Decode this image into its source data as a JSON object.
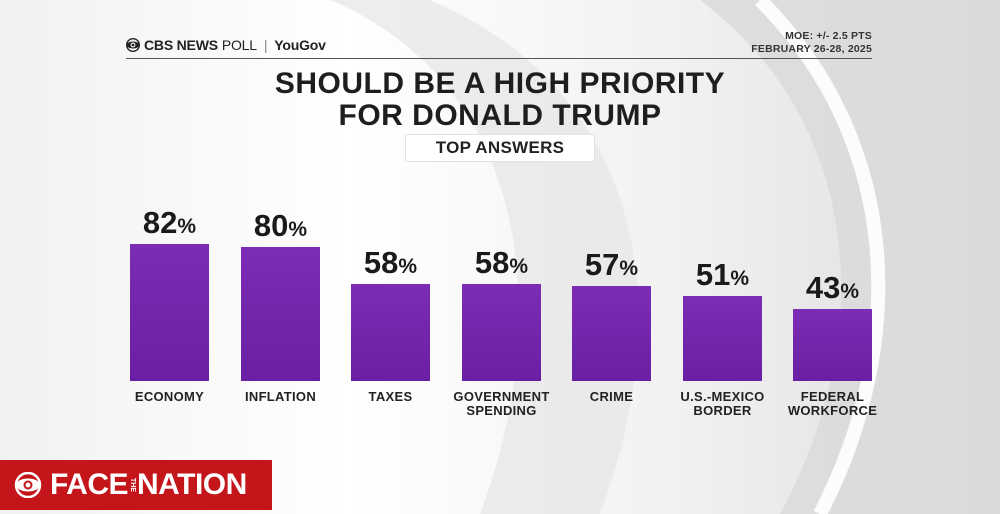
{
  "header": {
    "brand_network": "CBS NEWS",
    "brand_poll": "POLL",
    "brand_partner": "YouGov",
    "moe": "MOE: +/- 2.5 PTS",
    "dates": "FEBRUARY 26-28, 2025"
  },
  "title_line1": "SHOULD BE A HIGH PRIORITY",
  "title_line2": "FOR DONALD TRUMP",
  "subtitle": "TOP ANSWERS",
  "show": {
    "name_left": "FACE",
    "name_right": "NATION",
    "name_middle": "THE"
  },
  "colors": {
    "bar": "#7b2db5",
    "show_bg": "#c3151a"
  },
  "chart_data": {
    "type": "bar",
    "title": "SHOULD BE A HIGH PRIORITY FOR DONALD TRUMP",
    "subtitle": "TOP ANSWERS",
    "categories": [
      [
        "ECONOMY"
      ],
      [
        "INFLATION"
      ],
      [
        "TAXES"
      ],
      [
        "GOVERNMENT",
        "SPENDING"
      ],
      [
        "CRIME"
      ],
      [
        "U.S.-MEXICO",
        "BORDER"
      ],
      [
        "FEDERAL",
        "WORKFORCE"
      ]
    ],
    "values": [
      82,
      80,
      58,
      58,
      57,
      51,
      43
    ],
    "value_suffix": "%",
    "ylim": [
      0,
      100
    ],
    "xlabel": "",
    "ylabel": ""
  }
}
